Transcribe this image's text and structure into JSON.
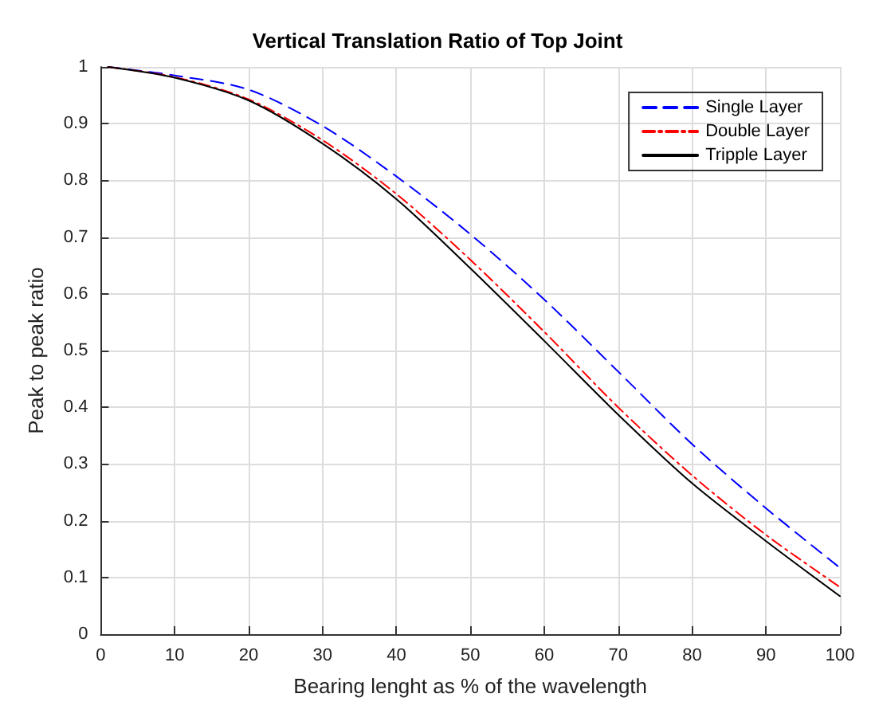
{
  "chart_data": {
    "type": "line",
    "title": "Vertical Translation Ratio of Top Joint",
    "xlabel": "Bearing lenght as % of the wavelength",
    "ylabel": "Peak to peak ratio",
    "x": [
      1,
      10,
      20,
      30,
      40,
      50,
      60,
      70,
      80,
      90,
      100
    ],
    "series": [
      {
        "name": "Single Layer",
        "color": "#0000ff",
        "line_style": "dashed",
        "values": [
          1,
          0.985,
          0.96,
          0.896,
          0.807,
          0.705,
          0.59,
          0.463,
          0.335,
          0.222,
          0.117
        ]
      },
      {
        "name": "Double Layer",
        "color": "#ff0000",
        "line_style": "dashdot",
        "values": [
          1,
          0.982,
          0.943,
          0.871,
          0.776,
          0.66,
          0.533,
          0.4,
          0.28,
          0.175,
          0.083
        ]
      },
      {
        "name": "Tripple Layer",
        "color": "#000000",
        "line_style": "solid",
        "values": [
          1,
          0.981,
          0.941,
          0.865,
          0.767,
          0.645,
          0.517,
          0.387,
          0.266,
          0.164,
          0.067
        ]
      }
    ],
    "xlim": [
      0,
      100
    ],
    "xticks": [
      0,
      10,
      20,
      30,
      40,
      50,
      60,
      70,
      80,
      90,
      100
    ],
    "ylim": [
      0,
      1
    ],
    "yticks": [
      0,
      0.1,
      0.2,
      0.3,
      0.4,
      0.5,
      0.6,
      0.7,
      0.8,
      0.9,
      1
    ],
    "grid": true,
    "legend": "top right",
    "marker": "none"
  }
}
